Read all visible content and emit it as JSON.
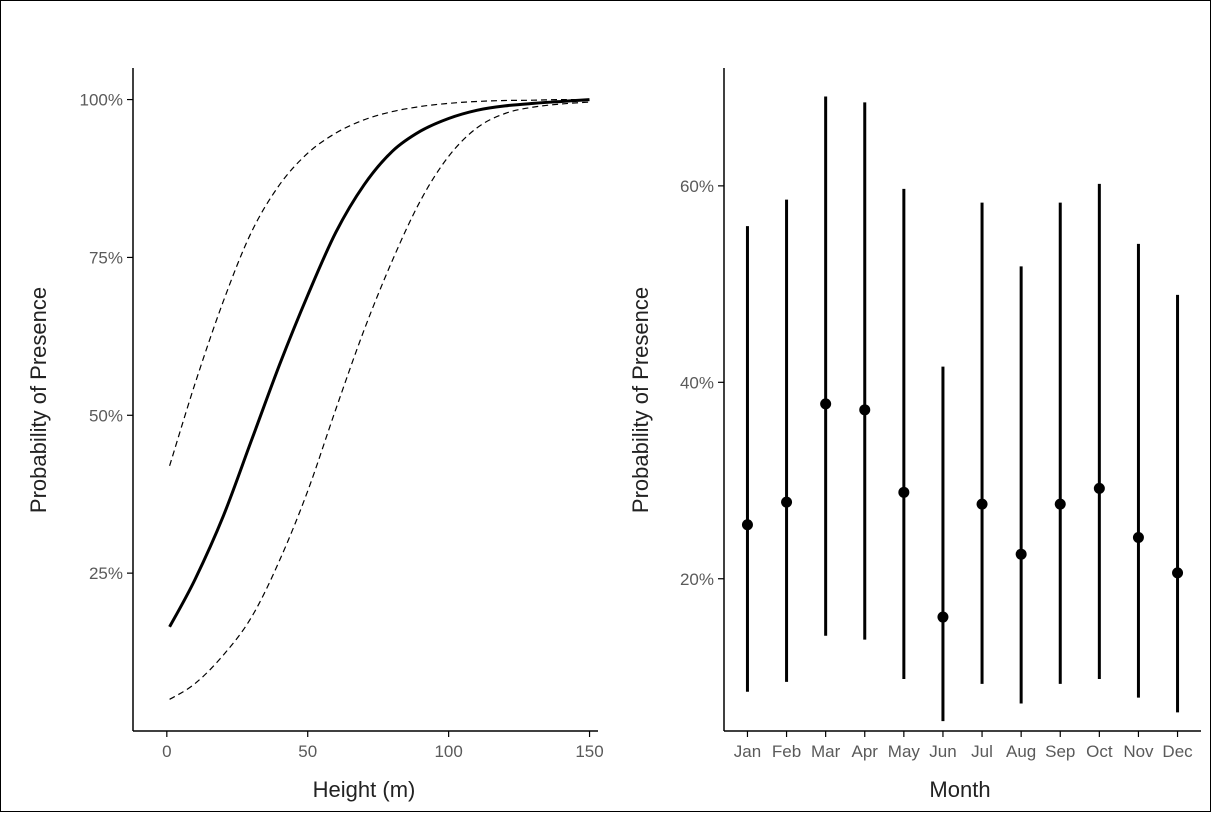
{
  "chart_data": [
    {
      "type": "line",
      "title": "",
      "xlabel": "Height  (m)",
      "ylabel": "Probability of Presence",
      "xlim": [
        -12,
        153
      ],
      "ylim": [
        0,
        105
      ],
      "xticks": [
        0,
        50,
        100,
        150
      ],
      "xtick_labels": [
        "0",
        "50",
        "100",
        "150"
      ],
      "yticks": [
        25,
        50,
        75,
        100
      ],
      "ytick_labels": [
        "25%",
        "50%",
        "75%",
        "100%"
      ],
      "grid": false,
      "legend": "none",
      "colors": {
        "series": "#000000",
        "axis": "#000000"
      },
      "x": [
        1,
        10,
        20,
        30,
        40,
        50,
        60,
        70,
        80,
        90,
        100,
        110,
        120,
        130,
        140,
        150
      ],
      "series": [
        {
          "style": "solid",
          "values": [
            16.5,
            24,
            34,
            46,
            58,
            69,
            79,
            86.5,
            91.8,
            95,
            97,
            98.3,
            99,
            99.4,
            99.7,
            100
          ]
        },
        {
          "style": "dashed",
          "values": [
            42,
            55,
            68,
            79,
            86.5,
            91.5,
            94.7,
            96.8,
            98.1,
            98.9,
            99.4,
            99.7,
            99.85,
            99.9,
            100,
            100
          ]
        },
        {
          "style": "dashed",
          "values": [
            5,
            7.5,
            12,
            18,
            27,
            38,
            51,
            63.5,
            74.5,
            84,
            91,
            95.5,
            97.8,
            98.8,
            99.3,
            99.6
          ]
        }
      ]
    },
    {
      "type": "scatter",
      "title": "",
      "xlabel": "Month",
      "ylabel": "Probability of Presence",
      "ylim": [
        4.5,
        72
      ],
      "yticks": [
        20,
        40,
        60
      ],
      "ytick_labels": [
        "20%",
        "40%",
        "60%"
      ],
      "grid": false,
      "legend": "none",
      "colors": {
        "series": "#000000",
        "axis": "#000000"
      },
      "categories": [
        "Jan",
        "Feb",
        "Mar",
        "Apr",
        "May",
        "Jun",
        "Jul",
        "Aug",
        "Sep",
        "Oct",
        "Nov",
        "Dec"
      ],
      "values": [
        25.5,
        27.8,
        37.8,
        37.2,
        28.8,
        16.1,
        27.6,
        22.5,
        27.6,
        29.2,
        24.2,
        20.6
      ],
      "lower": [
        8.5,
        9.5,
        14.2,
        13.8,
        9.8,
        5.5,
        9.3,
        7.3,
        9.3,
        9.8,
        7.9,
        6.4
      ],
      "upper": [
        55.9,
        58.6,
        69.1,
        68.5,
        59.7,
        41.6,
        58.3,
        51.8,
        58.3,
        60.2,
        54.1,
        48.9
      ]
    }
  ]
}
